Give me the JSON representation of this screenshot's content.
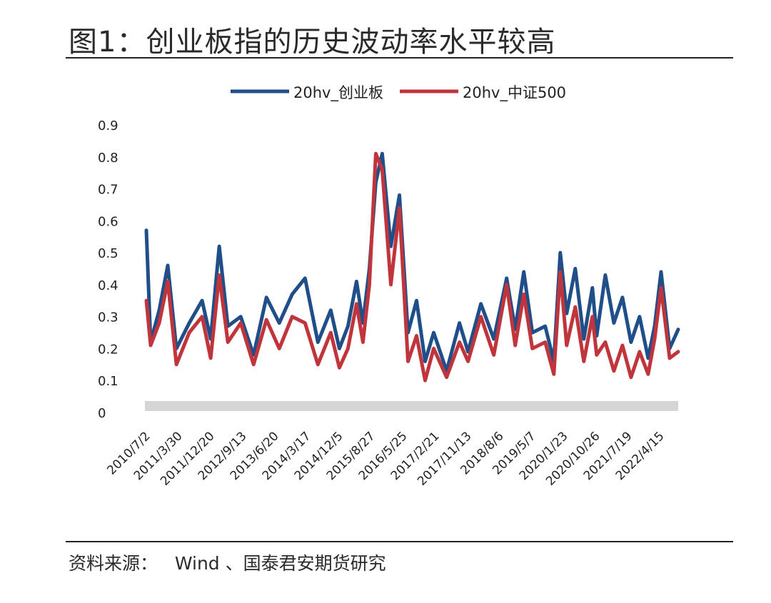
{
  "figure": {
    "title": "图1：创业板指的历史波动率水平较高",
    "source": "资料来源：   Wind 、国泰君安期货研究"
  },
  "chart_data": {
    "type": "line",
    "ylim": [
      0,
      0.9
    ],
    "yticks": [
      "0.9",
      "0.8",
      "0.7",
      "0.6",
      "0.5",
      "0.4",
      "0.3",
      "0.2",
      "0.1",
      "0"
    ],
    "xtick_labels": [
      "2010/7/2",
      "2011/3/30",
      "2011/12/20",
      "2012/9/13",
      "2013/6/20",
      "2014/3/17",
      "2014/12/5",
      "2015/8/27",
      "2016/5/25",
      "2017/2/21",
      "2017/11/13",
      "2018/8/6",
      "2019/5/7",
      "2020/1/23",
      "2020/10/26",
      "2021/7/19",
      "2022/4/15"
    ],
    "x": [
      2010.5,
      2010.6,
      2010.8,
      2011.0,
      2011.2,
      2011.5,
      2011.8,
      2012.0,
      2012.2,
      2012.4,
      2012.7,
      2013.0,
      2013.3,
      2013.6,
      2013.9,
      2014.2,
      2014.5,
      2014.8,
      2015.0,
      2015.2,
      2015.4,
      2015.55,
      2015.7,
      2015.85,
      2016.0,
      2016.2,
      2016.4,
      2016.6,
      2016.8,
      2017.0,
      2017.2,
      2017.5,
      2017.8,
      2018.0,
      2018.3,
      2018.6,
      2018.9,
      2019.1,
      2019.3,
      2019.5,
      2019.8,
      2020.0,
      2020.15,
      2020.3,
      2020.5,
      2020.7,
      2020.9,
      2021.0,
      2021.2,
      2021.4,
      2021.6,
      2021.8,
      2022.0,
      2022.2,
      2022.35,
      2022.5,
      2022.7,
      2022.9
    ],
    "series": [
      {
        "name": "20hv_创业板",
        "color": "#1f4e89",
        "values": [
          0.57,
          0.22,
          0.32,
          0.46,
          0.2,
          0.28,
          0.35,
          0.23,
          0.52,
          0.27,
          0.3,
          0.18,
          0.36,
          0.28,
          0.37,
          0.42,
          0.22,
          0.32,
          0.2,
          0.27,
          0.41,
          0.28,
          0.45,
          0.72,
          0.81,
          0.52,
          0.68,
          0.25,
          0.35,
          0.16,
          0.25,
          0.13,
          0.28,
          0.19,
          0.34,
          0.23,
          0.42,
          0.26,
          0.44,
          0.25,
          0.27,
          0.16,
          0.5,
          0.31,
          0.45,
          0.23,
          0.39,
          0.24,
          0.43,
          0.28,
          0.36,
          0.22,
          0.3,
          0.17,
          0.27,
          0.44,
          0.2,
          0.26
        ]
      },
      {
        "name": "20hv_中证500",
        "color": "#c0343c",
        "values": [
          0.35,
          0.21,
          0.28,
          0.41,
          0.15,
          0.25,
          0.3,
          0.17,
          0.43,
          0.22,
          0.28,
          0.15,
          0.29,
          0.2,
          0.3,
          0.28,
          0.15,
          0.25,
          0.14,
          0.2,
          0.34,
          0.22,
          0.4,
          0.81,
          0.76,
          0.4,
          0.64,
          0.16,
          0.24,
          0.1,
          0.2,
          0.11,
          0.22,
          0.16,
          0.3,
          0.18,
          0.4,
          0.21,
          0.37,
          0.2,
          0.22,
          0.12,
          0.44,
          0.21,
          0.33,
          0.16,
          0.3,
          0.18,
          0.22,
          0.13,
          0.21,
          0.11,
          0.19,
          0.12,
          0.23,
          0.39,
          0.17,
          0.19
        ]
      }
    ]
  }
}
